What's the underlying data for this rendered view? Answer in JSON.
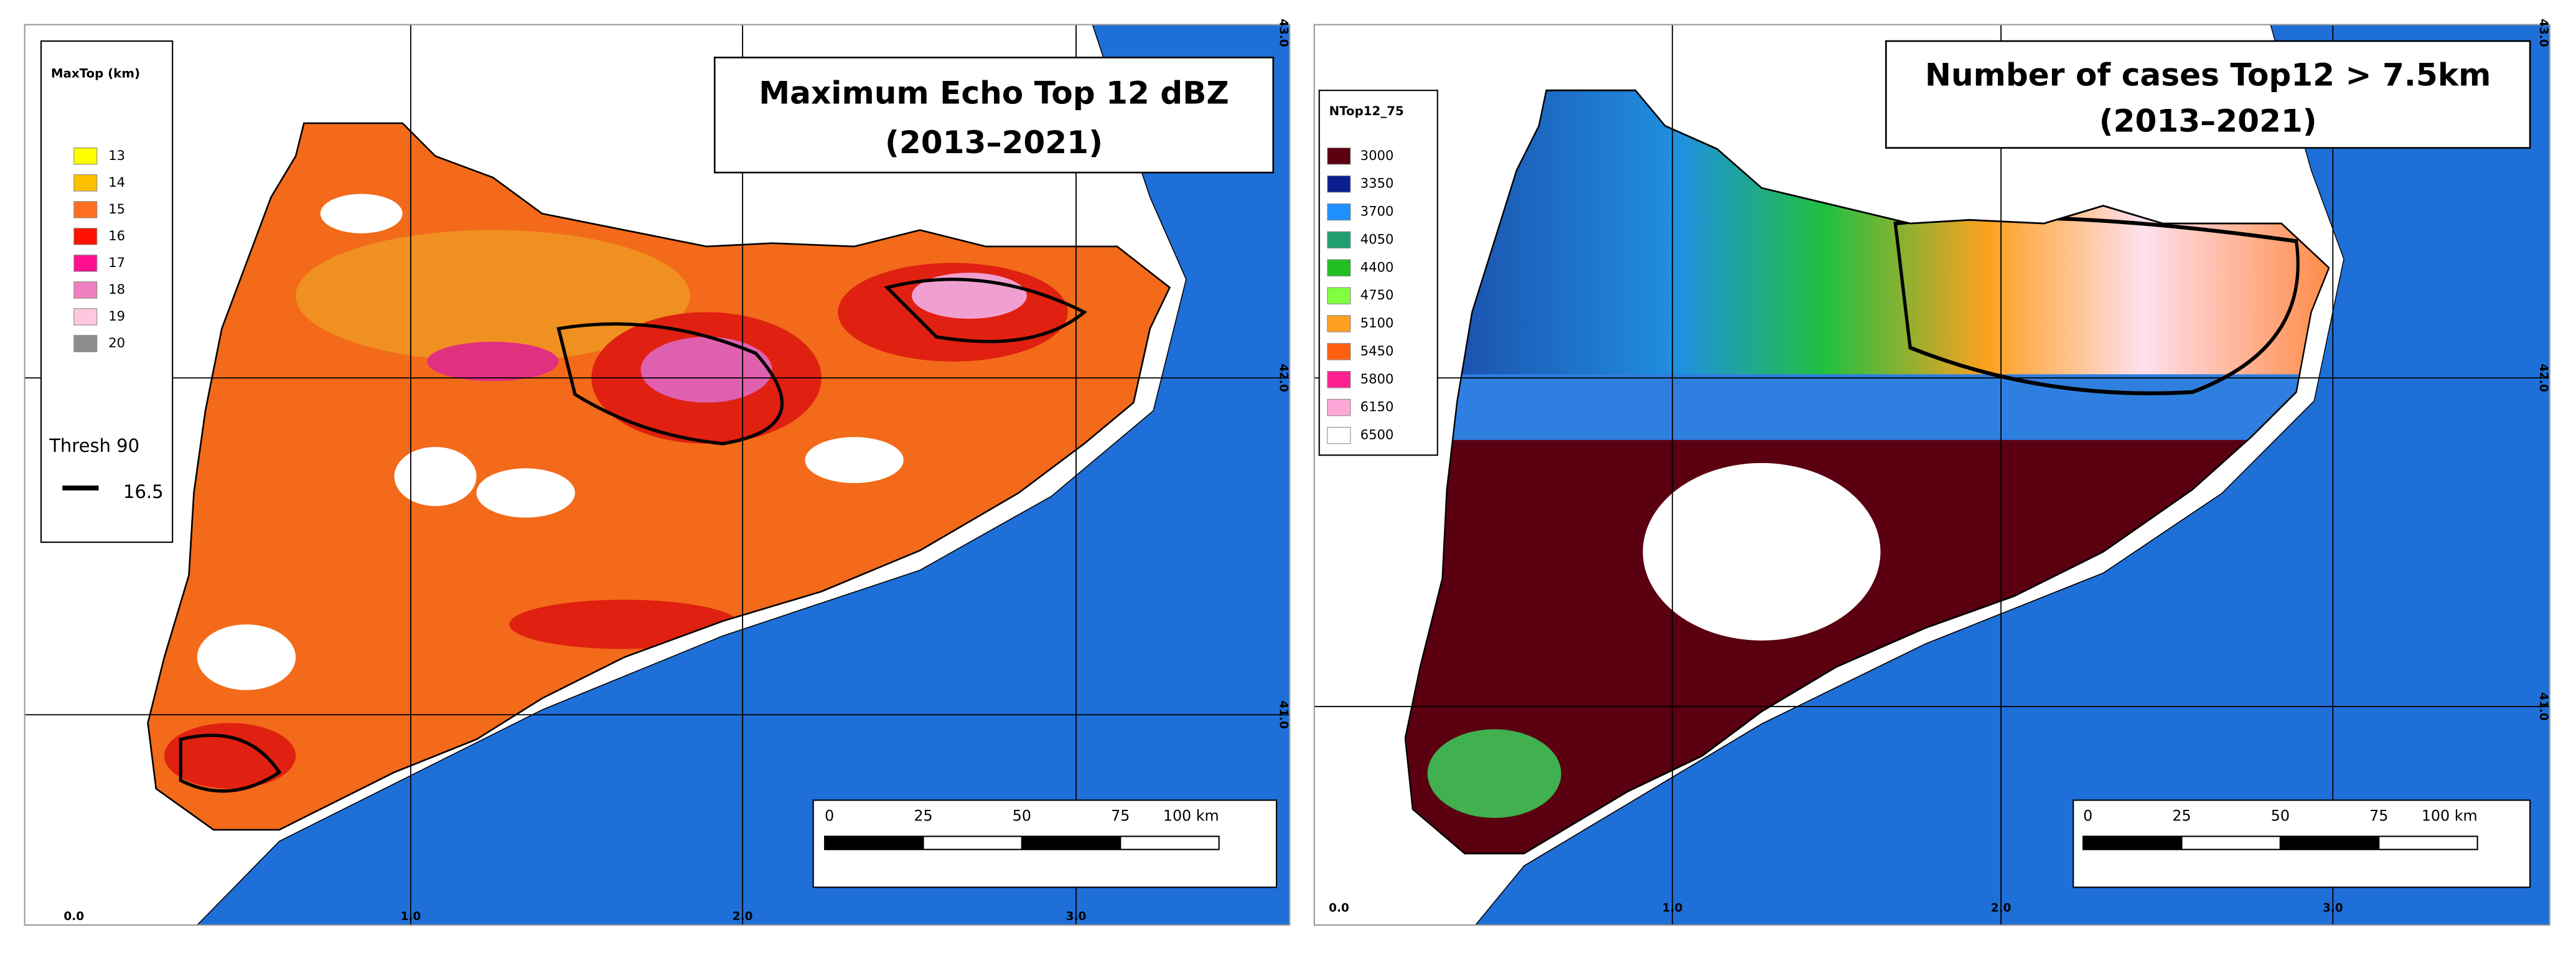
{
  "panels": [
    {
      "title": [
        "Maximum Echo Top 12 dBZ",
        "(2013–2021)"
      ],
      "legend": {
        "title": "MaxTop (km)",
        "items": [
          {
            "label": "13",
            "color": "#ffff00"
          },
          {
            "label": "14",
            "color": "#ffc000"
          },
          {
            "label": "15",
            "color": "#ff7020"
          },
          {
            "label": "16",
            "color": "#ff1000"
          },
          {
            "label": "17",
            "color": "#ff1090"
          },
          {
            "label": "18",
            "color": "#f080c0"
          },
          {
            "label": "19",
            "color": "#ffc8e0"
          },
          {
            "label": "20",
            "color": "#8c8c8c"
          }
        ],
        "threshold": {
          "label": "Thresh 90",
          "value": "16.5"
        }
      },
      "scale_bar": [
        "0",
        "25",
        "50",
        "75",
        "100 km"
      ],
      "lon_labels": [
        "0.0",
        "1.0",
        "2.0",
        "3.0"
      ],
      "lat_labels": [
        "41.0",
        "42.0",
        "43.0"
      ]
    },
    {
      "title": [
        "Number of cases Top12  > 7.5km",
        "(2013–2021)"
      ],
      "legend": {
        "title": "NTop12_75",
        "items": [
          {
            "label": "3000",
            "color": "#5a0010"
          },
          {
            "label": "3350",
            "color": "#0a1f8f"
          },
          {
            "label": "3700",
            "color": "#1e90ff"
          },
          {
            "label": "4050",
            "color": "#20a070"
          },
          {
            "label": "4400",
            "color": "#20c020"
          },
          {
            "label": "4750",
            "color": "#80ff40"
          },
          {
            "label": "5100",
            "color": "#ffa020"
          },
          {
            "label": "5450",
            "color": "#ff6010"
          },
          {
            "label": "5800",
            "color": "#ff2090"
          },
          {
            "label": "6150",
            "color": "#ffa8d8"
          },
          {
            "label": "6500",
            "color": "#ffffff"
          }
        ]
      },
      "scale_bar": [
        "0",
        "25",
        "50",
        "75",
        "100 km"
      ],
      "lon_labels": [
        "0.0",
        "1.0",
        "2.0",
        "3.0"
      ],
      "lat_labels": [
        "41.0",
        "42.0",
        "43.0"
      ]
    }
  ]
}
